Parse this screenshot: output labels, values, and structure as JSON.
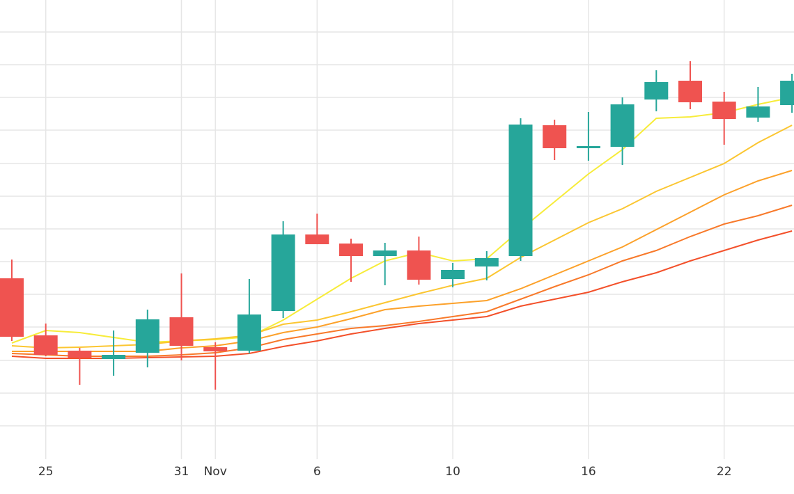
{
  "chart_data": {
    "type": "candlestick",
    "categories": [
      null,
      "25",
      null,
      null,
      null,
      "31",
      "Nov",
      null,
      null,
      "6",
      null,
      null,
      null,
      "10",
      null,
      null,
      null,
      "16",
      null,
      null,
      null,
      "22",
      null,
      null
    ],
    "open": [
      260,
      178,
      156,
      144,
      153,
      204,
      161,
      156,
      213,
      323,
      310,
      292,
      300,
      259,
      277,
      292,
      480,
      447,
      449,
      517,
      544,
      514,
      491,
      509
    ],
    "high": [
      287,
      195,
      160,
      185,
      215,
      267,
      168,
      259,
      342,
      353,
      317,
      311,
      320,
      282,
      299,
      490,
      488,
      499,
      520,
      559,
      572,
      528,
      535,
      554
    ],
    "low": [
      170,
      148,
      107,
      120,
      132,
      142,
      100,
      152,
      203,
      309,
      255,
      250,
      251,
      247,
      257,
      285,
      430,
      429,
      423,
      500,
      503,
      452,
      485,
      498
    ],
    "close": [
      176,
      150,
      146,
      150,
      201,
      163,
      155,
      208,
      323,
      309,
      292,
      300,
      258,
      272,
      289,
      481,
      447,
      450,
      510,
      542,
      513,
      489,
      507,
      544
    ],
    "up_color": "#26a69a",
    "down_color": "#ef5350",
    "series": [
      {
        "color": "#f7ec3a",
        "values": [
          167,
          185,
          182,
          175,
          168,
          170,
          172,
          176,
          200,
          230,
          260,
          285,
          297,
          285,
          288,
          330,
          370,
          410,
          445,
          490,
          492,
          498,
          510,
          520
        ]
      },
      {
        "color": "#fbc631",
        "values": [
          163,
          160,
          161,
          163,
          165,
          170,
          173,
          178,
          194,
          200,
          212,
          225,
          238,
          250,
          260,
          290,
          315,
          340,
          360,
          385,
          405,
          425,
          455,
          480
        ]
      },
      {
        "color": "#fca12a",
        "values": [
          155,
          155,
          155,
          155,
          155,
          160,
          163,
          170,
          182,
          190,
          202,
          215,
          220,
          224,
          228,
          245,
          265,
          285,
          305,
          330,
          355,
          380,
          400,
          415
        ]
      },
      {
        "color": "#f8792a",
        "values": [
          152,
          150,
          148,
          148,
          148,
          150,
          153,
          160,
          172,
          180,
          188,
          192,
          198,
          205,
          212,
          230,
          248,
          265,
          285,
          300,
          320,
          338,
          350,
          365
        ]
      },
      {
        "color": "#f3502a",
        "values": [
          148,
          145,
          145,
          145,
          146,
          147,
          148,
          152,
          162,
          170,
          180,
          188,
          195,
          200,
          205,
          220,
          230,
          240,
          255,
          268,
          285,
          300,
          315,
          328
        ]
      }
    ],
    "ylim": [
      0,
      660
    ],
    "yticks": [
      48,
      95,
      142,
      190,
      237,
      284,
      331,
      378,
      425,
      473,
      520,
      567,
      614
    ],
    "grid": true
  }
}
